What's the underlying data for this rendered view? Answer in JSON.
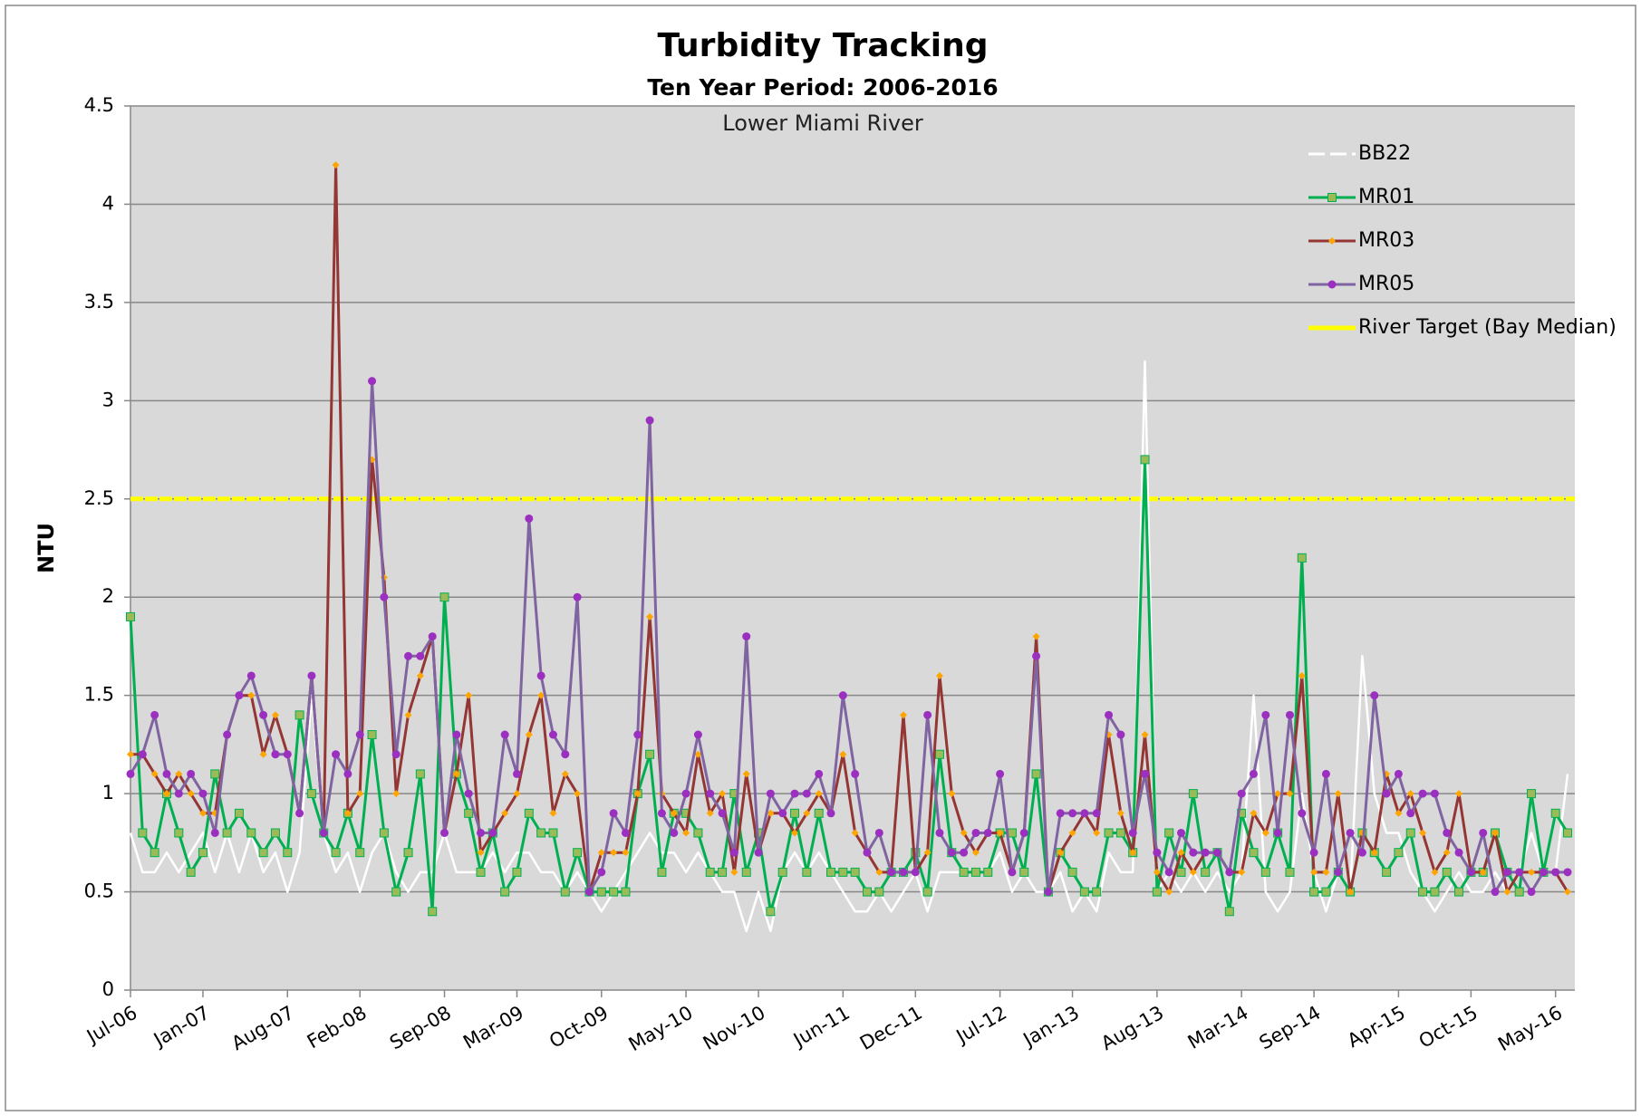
{
  "chart_data": {
    "type": "line",
    "title": "Turbidity Tracking",
    "subtitle": "Ten Year Period: 2006-2016",
    "annotation": "Lower Miami River",
    "y_label": "NTU",
    "ylim": [
      0,
      4.5
    ],
    "yticks": [
      0,
      0.5,
      1,
      1.5,
      2,
      2.5,
      3,
      3.5,
      4,
      4.5
    ],
    "grid": true,
    "legend": "upper right",
    "categories": [
      "Jul-06",
      null,
      null,
      null,
      null,
      null,
      "Jan-07",
      null,
      null,
      null,
      null,
      null,
      null,
      "Aug-07",
      null,
      null,
      null,
      null,
      null,
      "Feb-08",
      null,
      null,
      null,
      null,
      null,
      null,
      "Sep-08",
      null,
      null,
      null,
      null,
      null,
      "Mar-09",
      null,
      null,
      null,
      null,
      null,
      null,
      "Oct-09",
      null,
      null,
      null,
      null,
      null,
      null,
      "May-10",
      null,
      null,
      null,
      null,
      null,
      "Nov-10",
      null,
      null,
      null,
      null,
      null,
      null,
      "Jun-11",
      null,
      null,
      null,
      null,
      null,
      "Dec-11",
      null,
      null,
      null,
      null,
      null,
      null,
      "Jul-12",
      null,
      null,
      null,
      null,
      null,
      "Jan-13",
      null,
      null,
      null,
      null,
      null,
      null,
      "Aug-13",
      null,
      null,
      null,
      null,
      null,
      null,
      "Mar-14",
      null,
      null,
      null,
      null,
      null,
      "Sep-14",
      null,
      null,
      null,
      null,
      null,
      null,
      "Apr-15",
      null,
      null,
      null,
      null,
      null,
      "Oct-15",
      null,
      null,
      null,
      null,
      null,
      null,
      "May-16",
      null
    ],
    "series": [
      {
        "name": "BB22",
        "color": "#ffffff",
        "values": [
          0.8,
          0.6,
          0.6,
          0.7,
          0.6,
          0.7,
          0.8,
          0.6,
          0.8,
          0.6,
          0.8,
          0.6,
          0.7,
          0.5,
          0.7,
          1.5,
          0.8,
          0.6,
          0.7,
          0.5,
          0.7,
          0.8,
          0.6,
          0.5,
          0.6,
          0.6,
          0.8,
          0.6,
          0.6,
          0.6,
          0.7,
          0.6,
          0.7,
          0.7,
          0.6,
          0.6,
          0.5,
          0.6,
          0.5,
          0.4,
          0.5,
          0.6,
          0.7,
          0.8,
          0.7,
          0.7,
          0.6,
          0.7,
          0.6,
          0.5,
          0.5,
          0.3,
          0.5,
          0.3,
          0.6,
          0.7,
          0.6,
          0.7,
          0.6,
          0.5,
          0.4,
          0.4,
          0.5,
          0.4,
          0.5,
          0.6,
          0.4,
          0.6,
          0.6,
          0.6,
          0.6,
          0.6,
          0.7,
          0.5,
          0.6,
          0.5,
          0.5,
          0.6,
          0.4,
          0.5,
          0.4,
          0.7,
          0.6,
          0.6,
          3.2,
          0.5,
          0.6,
          0.5,
          0.6,
          0.5,
          0.6,
          0.5,
          0.6,
          1.5,
          0.5,
          0.4,
          0.5,
          1.0,
          0.6,
          0.4,
          0.6,
          0.5,
          1.7,
          1.0,
          0.8,
          0.8,
          0.6,
          0.5,
          0.4,
          0.5,
          0.6,
          0.5,
          0.5,
          0.6,
          0.5,
          0.6,
          0.8,
          0.6,
          0.6,
          1.1
        ]
      },
      {
        "name": "MR01",
        "color": "#00b050",
        "marker": "square",
        "marker_color": "#9bbb59",
        "values": [
          1.9,
          0.8,
          0.7,
          1.0,
          0.8,
          0.6,
          0.7,
          1.1,
          0.8,
          0.9,
          0.8,
          0.7,
          0.8,
          0.7,
          1.4,
          1.0,
          0.8,
          0.7,
          0.9,
          0.7,
          1.3,
          0.8,
          0.5,
          0.7,
          1.1,
          0.4,
          2.0,
          1.1,
          0.9,
          0.6,
          0.8,
          0.5,
          0.6,
          0.9,
          0.8,
          0.8,
          0.5,
          0.7,
          0.5,
          0.5,
          0.5,
          0.5,
          1.0,
          1.2,
          0.6,
          0.9,
          0.9,
          0.8,
          0.6,
          0.6,
          1.0,
          0.6,
          0.8,
          0.4,
          0.6,
          0.9,
          0.6,
          0.9,
          0.6,
          0.6,
          0.6,
          0.5,
          0.5,
          0.6,
          0.6,
          0.7,
          0.5,
          1.2,
          0.7,
          0.6,
          0.6,
          0.6,
          0.8,
          0.8,
          0.6,
          1.1,
          0.5,
          0.7,
          0.6,
          0.5,
          0.5,
          0.8,
          0.8,
          0.7,
          2.7,
          0.5,
          0.8,
          0.6,
          1.0,
          0.6,
          0.7,
          0.4,
          0.9,
          0.7,
          0.6,
          0.8,
          0.6,
          2.2,
          0.5,
          0.5,
          0.6,
          0.5,
          0.8,
          0.7,
          0.6,
          0.7,
          0.8,
          0.5,
          0.5,
          0.6,
          0.5,
          0.6,
          0.6,
          0.8,
          0.6,
          0.5,
          1.0,
          0.6,
          0.9,
          0.8
        ]
      },
      {
        "name": "MR03",
        "color": "#943634",
        "marker": "diamond",
        "marker_color": "#ffa500",
        "values": [
          1.2,
          1.2,
          1.1,
          1.0,
          1.1,
          1.0,
          0.9,
          0.9,
          1.3,
          1.5,
          1.5,
          1.2,
          1.4,
          1.2,
          0.9,
          1.6,
          0.8,
          4.2,
          0.9,
          1.0,
          2.7,
          2.1,
          1.0,
          1.4,
          1.6,
          1.8,
          0.8,
          1.1,
          1.5,
          0.7,
          0.8,
          0.9,
          1.0,
          1.3,
          1.5,
          0.9,
          1.1,
          1.0,
          0.5,
          0.7,
          0.7,
          0.7,
          1.0,
          1.9,
          1.0,
          0.9,
          0.8,
          1.2,
          0.9,
          1.0,
          0.6,
          1.1,
          0.7,
          0.9,
          0.9,
          0.8,
          0.9,
          1.0,
          0.9,
          1.2,
          0.8,
          0.7,
          0.6,
          0.6,
          1.4,
          0.6,
          0.7,
          1.6,
          1.0,
          0.8,
          0.7,
          0.8,
          0.8,
          0.6,
          0.8,
          1.8,
          0.5,
          0.7,
          0.8,
          0.9,
          0.8,
          1.3,
          0.9,
          0.7,
          1.3,
          0.6,
          0.5,
          0.7,
          0.6,
          0.7,
          0.7,
          0.6,
          0.6,
          0.9,
          0.8,
          1.0,
          1.0,
          1.6,
          0.6,
          0.6,
          1.0,
          0.5,
          0.8,
          0.7,
          1.1,
          0.9,
          1.0,
          0.8,
          0.6,
          0.7,
          1.0,
          0.6,
          0.6,
          0.8,
          0.5,
          0.6,
          0.6,
          0.6,
          0.6,
          0.5
        ]
      },
      {
        "name": "MR05",
        "color": "#8064a2",
        "marker": "circle",
        "marker_color": "#9b30c0",
        "values": [
          1.1,
          1.2,
          1.4,
          1.1,
          1.0,
          1.1,
          1.0,
          0.8,
          1.3,
          1.5,
          1.6,
          1.4,
          1.2,
          1.2,
          0.9,
          1.6,
          0.8,
          1.2,
          1.1,
          1.3,
          3.1,
          2.0,
          1.2,
          1.7,
          1.7,
          1.8,
          0.8,
          1.3,
          1.0,
          0.8,
          0.8,
          1.3,
          1.1,
          2.4,
          1.6,
          1.3,
          1.2,
          2.0,
          0.5,
          0.6,
          0.9,
          0.8,
          1.3,
          2.9,
          0.9,
          0.8,
          1.0,
          1.3,
          1.0,
          0.9,
          0.7,
          1.8,
          0.7,
          1.0,
          0.9,
          1.0,
          1.0,
          1.1,
          0.9,
          1.5,
          1.1,
          0.7,
          0.8,
          0.6,
          0.6,
          0.6,
          1.4,
          0.8,
          0.7,
          0.7,
          0.8,
          0.8,
          1.1,
          0.6,
          0.8,
          1.7,
          0.5,
          0.9,
          0.9,
          0.9,
          0.9,
          1.4,
          1.3,
          0.8,
          1.1,
          0.7,
          0.6,
          0.8,
          0.7,
          0.7,
          0.7,
          0.6,
          1.0,
          1.1,
          1.4,
          0.8,
          1.4,
          0.9,
          0.7,
          1.1,
          0.6,
          0.8,
          0.7,
          1.5,
          1.0,
          1.1,
          0.9,
          1.0,
          1.0,
          0.8,
          0.7,
          0.6,
          0.8,
          0.5,
          0.6,
          0.6,
          0.5,
          0.6,
          0.6,
          0.6
        ]
      }
    ],
    "target": {
      "name": "River Target (Bay Median)",
      "value": 2.5,
      "color": "#ffff00"
    }
  }
}
